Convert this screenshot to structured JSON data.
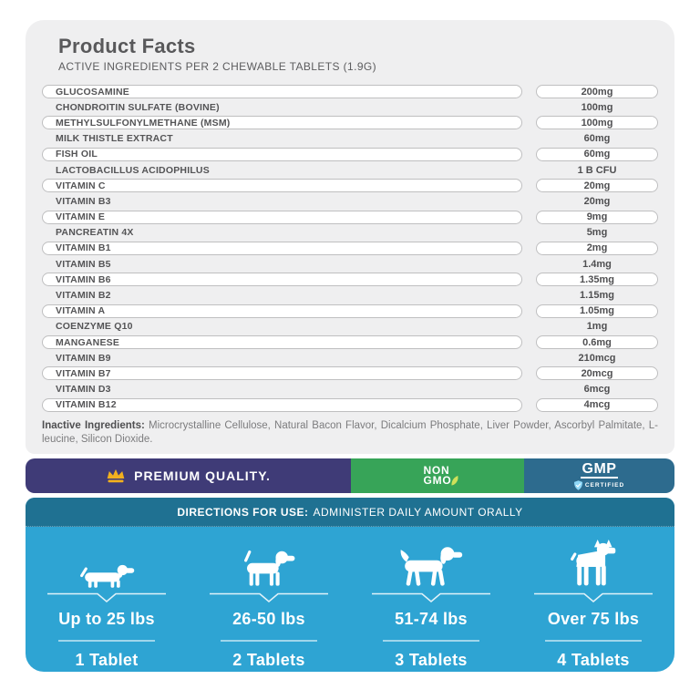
{
  "product_facts": {
    "title": "Product Facts",
    "subtitle": "ACTIVE INGREDIENTS PER 2 CHEWABLE TABLETS (1.9G)",
    "ingredients": [
      {
        "name": "GLUCOSAMINE",
        "amount": "200mg",
        "outlined": true
      },
      {
        "name": "CHONDROITIN SULFATE (BOVINE)",
        "amount": "100mg",
        "outlined": false
      },
      {
        "name": "METHYLSULFONYLMETHANE (MSM)",
        "amount": "100mg",
        "outlined": true
      },
      {
        "name": "MILK THISTLE EXTRACT",
        "amount": "60mg",
        "outlined": false
      },
      {
        "name": "FISH OIL",
        "amount": "60mg",
        "outlined": true
      },
      {
        "name": "LACTOBACILLUS ACIDOPHILUS",
        "amount": "1 B CFU",
        "outlined": false
      },
      {
        "name": "VITAMIN C",
        "amount": "20mg",
        "outlined": true
      },
      {
        "name": "VITAMIN B3",
        "amount": "20mg",
        "outlined": false
      },
      {
        "name": "VITAMIN E",
        "amount": "9mg",
        "outlined": true
      },
      {
        "name": "PANCREATIN 4X",
        "amount": "5mg",
        "outlined": false
      },
      {
        "name": "VITAMIN B1",
        "amount": "2mg",
        "outlined": true
      },
      {
        "name": "VITAMIN B5",
        "amount": "1.4mg",
        "outlined": false
      },
      {
        "name": "VITAMIN B6",
        "amount": "1.35mg",
        "outlined": true
      },
      {
        "name": "VITAMIN B2",
        "amount": "1.15mg",
        "outlined": false
      },
      {
        "name": "VITAMIN A",
        "amount": "1.05mg",
        "outlined": true
      },
      {
        "name": "COENZYME Q10",
        "amount": "1mg",
        "outlined": false
      },
      {
        "name": "MANGANESE",
        "amount": "0.6mg",
        "outlined": true
      },
      {
        "name": "VITAMIN B9",
        "amount": "210mcg",
        "outlined": false
      },
      {
        "name": "VITAMIN B7",
        "amount": "20mcg",
        "outlined": true
      },
      {
        "name": "VITAMIN D3",
        "amount": "6mcg",
        "outlined": false
      },
      {
        "name": "VITAMIN B12",
        "amount": "4mcg",
        "outlined": true
      }
    ],
    "inactive_label": "Inactive Ingredients:",
    "inactive_text": "Microcrystalline Cellulose, Natural Bacon Flavor, Dicalcium Phosphate, Liver Powder, Ascorbyl Palmitate, L-leucine, Silicon Dioxide."
  },
  "badges": {
    "premium": {
      "label": "PREMIUM QUALITY.",
      "icon": "crown-icon",
      "bg_color": "#3f3b77",
      "icon_color": "#f2b01e"
    },
    "non_gmo": {
      "line1": "NON",
      "line2": "GMO",
      "icon": "leaf-icon",
      "bg_color": "#37a458"
    },
    "gmp": {
      "label": "GMP",
      "sublabel": "CERTIFIED",
      "icon": "shield-check-icon",
      "bg_color": "#2d6b8e"
    }
  },
  "directions": {
    "header_bold": "DIRECTIONS FOR USE:",
    "header_rest": "ADMINISTER DAILY AMOUNT ORALLY",
    "header_bg_color": "#1f7192",
    "body_bg_color": "#2ea4d3",
    "columns": [
      {
        "dog_icon": "dachshund-icon",
        "weight": "Up to 25 lbs",
        "dose": "1 Tablet"
      },
      {
        "dog_icon": "beagle-icon",
        "weight": "26-50 lbs",
        "dose": "2 Tablets"
      },
      {
        "dog_icon": "retriever-icon",
        "weight": "51-74 lbs",
        "dose": "3 Tablets"
      },
      {
        "dog_icon": "boxer-icon",
        "weight": "Over 75 lbs",
        "dose": "4 Tablets"
      }
    ]
  }
}
